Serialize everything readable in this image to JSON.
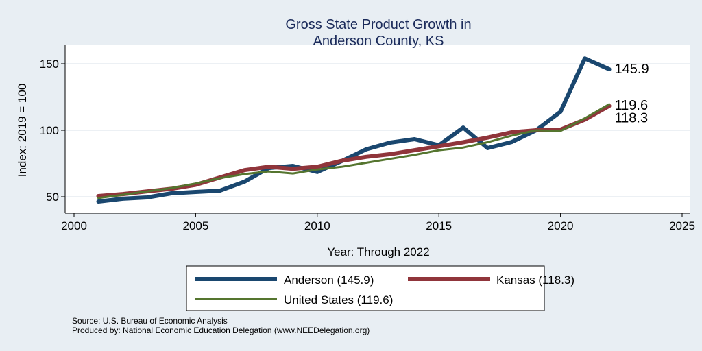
{
  "chart_data": {
    "type": "line",
    "title": [
      "Gross State Product Growth in",
      "Anderson County, KS"
    ],
    "xlabel": "Year: Through 2022",
    "ylabel": "Index: 2019 = 100",
    "xlim": [
      2000,
      2025
    ],
    "ylim": [
      45,
      160
    ],
    "xticks": [
      2000,
      2005,
      2010,
      2015,
      2020,
      2025
    ],
    "yticks": [
      50,
      100,
      150
    ],
    "grid": true,
    "x": [
      2001,
      2002,
      2003,
      2004,
      2005,
      2006,
      2007,
      2008,
      2009,
      2010,
      2011,
      2012,
      2013,
      2014,
      2015,
      2016,
      2017,
      2018,
      2019,
      2020,
      2021,
      2022
    ],
    "series": [
      {
        "name": "Anderson",
        "legend": "Anderson  (145.9)",
        "color": "#1a476f",
        "width": 6,
        "end_label": "145.9",
        "values": [
          46.4,
          48.5,
          49.5,
          52.6,
          53.6,
          54.6,
          61.3,
          71.6,
          73.2,
          68.6,
          76.8,
          85.6,
          90.7,
          93.3,
          88.7,
          102,
          86.6,
          91.2,
          100,
          113.9,
          154,
          145.9
        ]
      },
      {
        "name": "Kansas",
        "legend": "Kansas (118.3)",
        "color": "#90353b",
        "width": 6,
        "end_label": "118.3",
        "values": [
          50.5,
          52,
          54,
          56,
          59,
          64.5,
          70,
          72.5,
          71,
          72.5,
          77,
          80,
          82,
          85,
          88,
          91,
          94.5,
          98.5,
          100,
          100.5,
          108,
          118.3
        ]
      },
      {
        "name": "United States",
        "legend": "United States (119.6)",
        "color": "#55752f",
        "width": 3,
        "end_label": "119.6",
        "values": [
          49,
          51.5,
          54,
          56.5,
          60,
          64,
          67,
          69,
          67.5,
          70.5,
          72.5,
          75.5,
          78.5,
          81.5,
          85,
          87,
          91,
          96,
          100,
          99.5,
          109,
          119.6
        ]
      }
    ],
    "legend_position": "bottom",
    "notes": [
      "Source: U.S. Bureau of Economic Analysis",
      "Produced by: National Economic Education Delegation (www.NEEDelegation.org)"
    ]
  }
}
